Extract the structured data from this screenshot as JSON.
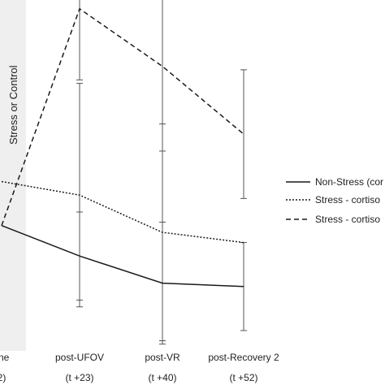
{
  "chart_data": {
    "type": "line",
    "categories": [
      "line",
      "post-UFOV",
      "post-VR",
      "post-Recovery 2"
    ],
    "category_sublabels": [
      "2)",
      "(t +23)",
      "(t +40)",
      "(t +52)"
    ],
    "band_label": "Stress or Control",
    "ylim": [
      0,
      100
    ],
    "series": [
      {
        "name": "Non-Stress (cor",
        "style": "solid",
        "values": [
          37,
          28,
          20,
          19
        ],
        "error": [
          null,
          13,
          18,
          13
        ]
      },
      {
        "name": "Stress - cortiso",
        "style": "dotted",
        "values": [
          50,
          46,
          35,
          32
        ],
        "error": [
          null,
          33,
          32,
          null
        ]
      },
      {
        "name": "Stress - cortiso",
        "style": "dashed",
        "values": [
          37,
          101,
          84,
          64
        ],
        "error": [
          null,
          21,
          25,
          19
        ]
      }
    ],
    "colors": {
      "line": "#1a1a1a",
      "error_bar": "#555555",
      "band": "#efefef"
    }
  }
}
